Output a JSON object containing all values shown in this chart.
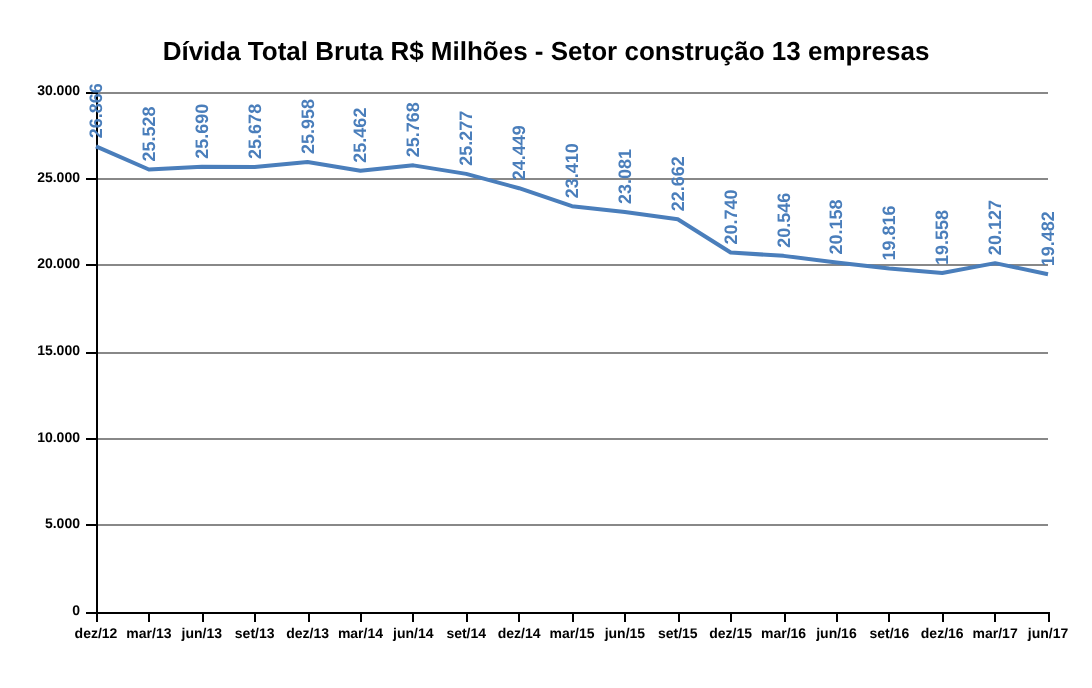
{
  "chart_data": {
    "type": "line",
    "title": "Dívida Total Bruta R$ Milhões - Setor construção 13 empresas",
    "categories": [
      "dez/12",
      "mar/13",
      "jun/13",
      "set/13",
      "dez/13",
      "mar/14",
      "jun/14",
      "set/14",
      "dez/14",
      "mar/15",
      "jun/15",
      "set/15",
      "dez/15",
      "mar/16",
      "jun/16",
      "set/16",
      "dez/16",
      "mar/17",
      "jun/17"
    ],
    "series": [
      {
        "color": "#4a7ebb",
        "values": [
          26866,
          25528,
          25690,
          25678,
          25958,
          25462,
          25768,
          25277,
          24449,
          23410,
          23081,
          22662,
          20740,
          20546,
          20158,
          19816,
          19558,
          20127,
          19482
        ],
        "value_labels": [
          "26.866",
          "25.528",
          "25.690",
          "25.678",
          "25.958",
          "25.462",
          "25.768",
          "25.277",
          "24.449",
          "23.410",
          "23.081",
          "22.662",
          "20.740",
          "20.546",
          "20.158",
          "19.816",
          "19.558",
          "20.127",
          "19.482"
        ]
      }
    ],
    "ylim": [
      0,
      30000
    ],
    "yticks": [
      0,
      {
        "value": 5000,
        "label": "5.000"
      },
      {
        "value": 10000,
        "label": "10.000"
      },
      {
        "value": 15000,
        "label": "15.000"
      },
      {
        "value": 20000,
        "label": "20.000"
      },
      {
        "value": 25000,
        "label": "25.000"
      },
      {
        "value": 30000,
        "label": "30.000"
      }
    ],
    "grid": "y",
    "marker": "none",
    "line_style": "solid"
  }
}
